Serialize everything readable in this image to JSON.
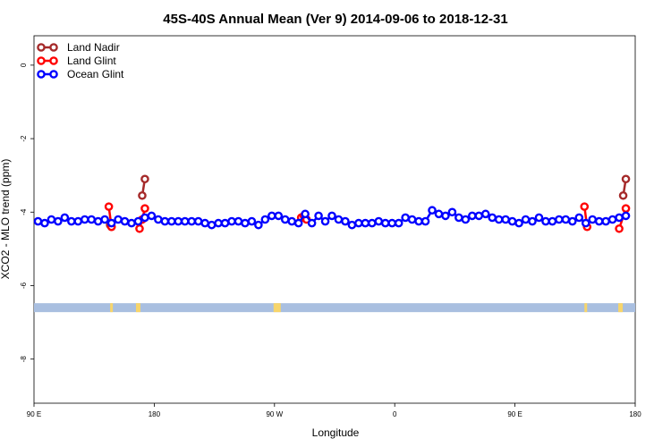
{
  "chart_data": {
    "type": "line",
    "title": "45S-40S Annual Mean (Ver 9)   2014-09-06 to 2018-12-31",
    "xlabel": "Longitude",
    "ylabel": "XCO2 - MLO trend (ppm)",
    "xlim": [
      90,
      540
    ],
    "ylim": [
      -9.2,
      0.8
    ],
    "x_ticks": [
      {
        "value": 90,
        "label": "90 E"
      },
      {
        "value": 180,
        "label": "180"
      },
      {
        "value": 270,
        "label": "90 W"
      },
      {
        "value": 360,
        "label": "0"
      },
      {
        "value": 450,
        "label": "90 E"
      },
      {
        "value": 540,
        "label": "180"
      }
    ],
    "y_ticks": [
      {
        "value": 0,
        "label": "0"
      },
      {
        "value": -2,
        "label": "-2"
      },
      {
        "value": -4,
        "label": "-4"
      },
      {
        "value": -6,
        "label": "-6"
      },
      {
        "value": -8,
        "label": "-8"
      }
    ],
    "legend_position": "top-left",
    "land_band": {
      "y": -6.6
    },
    "series": [
      {
        "name": "Land Nadir",
        "color": "#a52a2a",
        "segments": [
          [
            [
              147,
              -4.35
            ],
            [
              148,
              -4.4
            ]
          ],
          [
            [
              171,
              -3.55
            ],
            [
              173,
              -3.1
            ]
          ],
          [
            [
              531,
              -3.55
            ],
            [
              533,
              -3.1
            ]
          ]
        ]
      },
      {
        "name": "Land Glint",
        "color": "#ff0000",
        "segments": [
          [
            [
              146,
              -3.85
            ],
            [
              148,
              -4.4
            ]
          ],
          [
            [
              169,
              -4.45
            ],
            [
              171,
              -4.2
            ],
            [
              173,
              -3.9
            ]
          ],
          [
            [
              290,
              -4.15
            ],
            [
              292,
              -4.1
            ],
            [
              294,
              -4.2
            ]
          ],
          [
            [
              502,
              -3.85
            ],
            [
              504,
              -4.4
            ]
          ],
          [
            [
              528,
              -4.45
            ],
            [
              533,
              -3.9
            ]
          ]
        ]
      },
      {
        "name": "Ocean Glint",
        "color": "#0000ff",
        "segments": [
          [
            [
              93,
              -4.25
            ],
            [
              98,
              -4.3
            ],
            [
              103,
              -4.2
            ],
            [
              108,
              -4.25
            ],
            [
              113,
              -4.15
            ],
            [
              118,
              -4.25
            ],
            [
              123,
              -4.25
            ],
            [
              128,
              -4.2
            ],
            [
              133,
              -4.2
            ],
            [
              138,
              -4.25
            ],
            [
              143,
              -4.2
            ],
            [
              148,
              -4.3
            ],
            [
              153,
              -4.2
            ],
            [
              158,
              -4.25
            ],
            [
              163,
              -4.3
            ],
            [
              168,
              -4.25
            ],
            [
              173,
              -4.15
            ],
            [
              178,
              -4.1
            ],
            [
              183,
              -4.2
            ],
            [
              188,
              -4.25
            ],
            [
              193,
              -4.25
            ],
            [
              198,
              -4.25
            ],
            [
              203,
              -4.25
            ],
            [
              208,
              -4.25
            ],
            [
              213,
              -4.25
            ],
            [
              218,
              -4.3
            ],
            [
              223,
              -4.35
            ],
            [
              228,
              -4.3
            ],
            [
              233,
              -4.3
            ],
            [
              238,
              -4.25
            ],
            [
              243,
              -4.25
            ],
            [
              248,
              -4.3
            ],
            [
              253,
              -4.25
            ],
            [
              258,
              -4.35
            ],
            [
              263,
              -4.2
            ],
            [
              268,
              -4.1
            ],
            [
              273,
              -4.1
            ],
            [
              278,
              -4.2
            ],
            [
              283,
              -4.25
            ],
            [
              288,
              -4.3
            ],
            [
              293,
              -4.05
            ],
            [
              298,
              -4.3
            ],
            [
              303,
              -4.1
            ],
            [
              308,
              -4.25
            ],
            [
              313,
              -4.1
            ],
            [
              318,
              -4.2
            ],
            [
              323,
              -4.25
            ],
            [
              328,
              -4.35
            ],
            [
              333,
              -4.3
            ],
            [
              338,
              -4.3
            ],
            [
              343,
              -4.3
            ],
            [
              348,
              -4.25
            ],
            [
              353,
              -4.3
            ],
            [
              358,
              -4.3
            ],
            [
              363,
              -4.3
            ],
            [
              368,
              -4.15
            ],
            [
              373,
              -4.2
            ],
            [
              378,
              -4.25
            ],
            [
              383,
              -4.25
            ],
            [
              388,
              -3.95
            ],
            [
              393,
              -4.05
            ],
            [
              398,
              -4.1
            ],
            [
              403,
              -4.0
            ],
            [
              408,
              -4.15
            ],
            [
              413,
              -4.2
            ],
            [
              418,
              -4.1
            ],
            [
              423,
              -4.1
            ],
            [
              428,
              -4.05
            ],
            [
              433,
              -4.15
            ],
            [
              438,
              -4.2
            ],
            [
              443,
              -4.2
            ],
            [
              448,
              -4.25
            ],
            [
              453,
              -4.3
            ],
            [
              458,
              -4.2
            ],
            [
              463,
              -4.25
            ],
            [
              468,
              -4.15
            ],
            [
              473,
              -4.25
            ],
            [
              478,
              -4.25
            ],
            [
              483,
              -4.2
            ],
            [
              488,
              -4.2
            ],
            [
              493,
              -4.25
            ],
            [
              498,
              -4.15
            ],
            [
              503,
              -4.3
            ],
            [
              508,
              -4.2
            ],
            [
              513,
              -4.25
            ],
            [
              518,
              -4.25
            ],
            [
              523,
              -4.2
            ],
            [
              528,
              -4.15
            ],
            [
              533,
              -4.1
            ]
          ]
        ]
      }
    ]
  }
}
